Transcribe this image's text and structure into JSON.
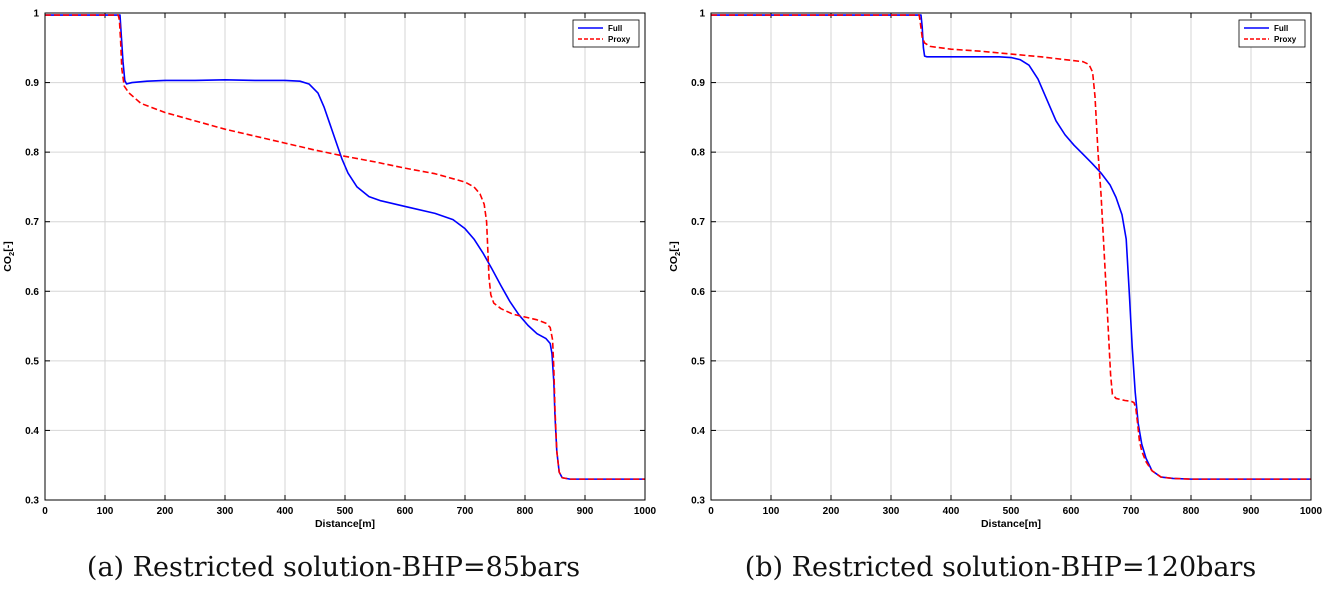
{
  "chart_data": [
    {
      "type": "line",
      "caption": "(a) Restricted solution-BHP=85bars",
      "xlabel": "Distance[m]",
      "ylabel_main": "CO",
      "ylabel_sub": "2",
      "ylabel_suffix": "[-]",
      "xlim": [
        0,
        1000
      ],
      "ylim": [
        0.3,
        1.0
      ],
      "xticks": [
        "0",
        "100",
        "200",
        "300",
        "400",
        "500",
        "600",
        "700",
        "800",
        "900",
        "1000"
      ],
      "yticks": [
        "0.3",
        "0.4",
        "0.5",
        "0.6",
        "0.7",
        "0.8",
        "0.9",
        "1"
      ],
      "grid": true,
      "legend_position": "top-right",
      "series": [
        {
          "name": "Full",
          "color": "#0000ff",
          "dash": "solid",
          "points": [
            [
              0,
              0.997
            ],
            [
              125,
              0.997
            ],
            [
              127,
              0.97
            ],
            [
              130,
              0.93
            ],
            [
              133,
              0.903
            ],
            [
              136,
              0.898
            ],
            [
              145,
              0.9
            ],
            [
              170,
              0.902
            ],
            [
              200,
              0.903
            ],
            [
              250,
              0.903
            ],
            [
              300,
              0.904
            ],
            [
              350,
              0.903
            ],
            [
              400,
              0.903
            ],
            [
              425,
              0.902
            ],
            [
              440,
              0.898
            ],
            [
              455,
              0.885
            ],
            [
              465,
              0.865
            ],
            [
              475,
              0.84
            ],
            [
              485,
              0.815
            ],
            [
              495,
              0.79
            ],
            [
              505,
              0.77
            ],
            [
              520,
              0.75
            ],
            [
              540,
              0.736
            ],
            [
              560,
              0.73
            ],
            [
              600,
              0.722
            ],
            [
              650,
              0.712
            ],
            [
              680,
              0.703
            ],
            [
              700,
              0.69
            ],
            [
              715,
              0.675
            ],
            [
              730,
              0.655
            ],
            [
              745,
              0.632
            ],
            [
              760,
              0.608
            ],
            [
              775,
              0.585
            ],
            [
              790,
              0.566
            ],
            [
              805,
              0.551
            ],
            [
              820,
              0.539
            ],
            [
              835,
              0.532
            ],
            [
              842,
              0.525
            ],
            [
              845,
              0.51
            ],
            [
              848,
              0.47
            ],
            [
              850,
              0.42
            ],
            [
              853,
              0.37
            ],
            [
              857,
              0.34
            ],
            [
              862,
              0.332
            ],
            [
              875,
              0.33
            ],
            [
              1000,
              0.33
            ]
          ]
        },
        {
          "name": "Proxy",
          "color": "#ff0000",
          "dash": "dashed",
          "points": [
            [
              0,
              0.997
            ],
            [
              122,
              0.997
            ],
            [
              124,
              0.99
            ],
            [
              126,
              0.96
            ],
            [
              128,
              0.92
            ],
            [
              132,
              0.895
            ],
            [
              140,
              0.885
            ],
            [
              160,
              0.87
            ],
            [
              200,
              0.857
            ],
            [
              250,
              0.845
            ],
            [
              300,
              0.833
            ],
            [
              350,
              0.823
            ],
            [
              400,
              0.813
            ],
            [
              450,
              0.803
            ],
            [
              500,
              0.794
            ],
            [
              550,
              0.786
            ],
            [
              600,
              0.777
            ],
            [
              650,
              0.769
            ],
            [
              700,
              0.757
            ],
            [
              715,
              0.75
            ],
            [
              725,
              0.74
            ],
            [
              732,
              0.725
            ],
            [
              736,
              0.7
            ],
            [
              738,
              0.66
            ],
            [
              740,
              0.62
            ],
            [
              743,
              0.595
            ],
            [
              748,
              0.583
            ],
            [
              760,
              0.575
            ],
            [
              780,
              0.567
            ],
            [
              800,
              0.563
            ],
            [
              820,
              0.559
            ],
            [
              835,
              0.554
            ],
            [
              842,
              0.548
            ],
            [
              846,
              0.53
            ],
            [
              848,
              0.49
            ],
            [
              850,
              0.43
            ],
            [
              853,
              0.37
            ],
            [
              857,
              0.34
            ],
            [
              862,
              0.332
            ],
            [
              875,
              0.33
            ],
            [
              1000,
              0.33
            ]
          ]
        }
      ]
    },
    {
      "type": "line",
      "caption": "(b) Restricted solution-BHP=120bars",
      "xlabel": "Distance[m]",
      "ylabel_main": "CO",
      "ylabel_sub": "2",
      "ylabel_suffix": "[-]",
      "xlim": [
        0,
        1000
      ],
      "ylim": [
        0.3,
        1.0
      ],
      "xticks": [
        "0",
        "100",
        "200",
        "300",
        "400",
        "500",
        "600",
        "700",
        "800",
        "900",
        "1000"
      ],
      "yticks": [
        "0.3",
        "0.4",
        "0.5",
        "0.6",
        "0.7",
        "0.8",
        "0.9",
        "1"
      ],
      "grid": true,
      "legend_position": "top-right",
      "series": [
        {
          "name": "Full",
          "color": "#0000ff",
          "dash": "solid",
          "points": [
            [
              0,
              0.997
            ],
            [
              350,
              0.997
            ],
            [
              352,
              0.98
            ],
            [
              354,
              0.95
            ],
            [
              356,
              0.938
            ],
            [
              360,
              0.937
            ],
            [
              400,
              0.937
            ],
            [
              450,
              0.937
            ],
            [
              480,
              0.937
            ],
            [
              500,
              0.936
            ],
            [
              515,
              0.933
            ],
            [
              530,
              0.925
            ],
            [
              545,
              0.905
            ],
            [
              560,
              0.875
            ],
            [
              575,
              0.845
            ],
            [
              590,
              0.825
            ],
            [
              605,
              0.81
            ],
            [
              620,
              0.797
            ],
            [
              635,
              0.784
            ],
            [
              650,
              0.77
            ],
            [
              665,
              0.753
            ],
            [
              675,
              0.735
            ],
            [
              685,
              0.71
            ],
            [
              692,
              0.675
            ],
            [
              697,
              0.6
            ],
            [
              702,
              0.52
            ],
            [
              707,
              0.455
            ],
            [
              712,
              0.41
            ],
            [
              718,
              0.38
            ],
            [
              725,
              0.36
            ],
            [
              735,
              0.342
            ],
            [
              750,
              0.333
            ],
            [
              770,
              0.331
            ],
            [
              800,
              0.33
            ],
            [
              1000,
              0.33
            ]
          ]
        },
        {
          "name": "Proxy",
          "color": "#ff0000",
          "dash": "dashed",
          "points": [
            [
              0,
              0.997
            ],
            [
              347,
              0.997
            ],
            [
              349,
              0.985
            ],
            [
              352,
              0.965
            ],
            [
              356,
              0.957
            ],
            [
              365,
              0.952
            ],
            [
              400,
              0.948
            ],
            [
              450,
              0.945
            ],
            [
              500,
              0.941
            ],
            [
              550,
              0.937
            ],
            [
              600,
              0.932
            ],
            [
              620,
              0.93
            ],
            [
              630,
              0.926
            ],
            [
              636,
              0.915
            ],
            [
              640,
              0.88
            ],
            [
              645,
              0.8
            ],
            [
              650,
              0.74
            ],
            [
              655,
              0.66
            ],
            [
              660,
              0.58
            ],
            [
              663,
              0.53
            ],
            [
              666,
              0.48
            ],
            [
              669,
              0.452
            ],
            [
              675,
              0.446
            ],
            [
              690,
              0.443
            ],
            [
              700,
              0.442
            ],
            [
              705,
              0.44
            ],
            [
              708,
              0.432
            ],
            [
              711,
              0.41
            ],
            [
              714,
              0.385
            ],
            [
              718,
              0.37
            ],
            [
              725,
              0.355
            ],
            [
              735,
              0.342
            ],
            [
              750,
              0.333
            ],
            [
              770,
              0.331
            ],
            [
              800,
              0.33
            ],
            [
              1000,
              0.33
            ]
          ]
        }
      ]
    }
  ]
}
